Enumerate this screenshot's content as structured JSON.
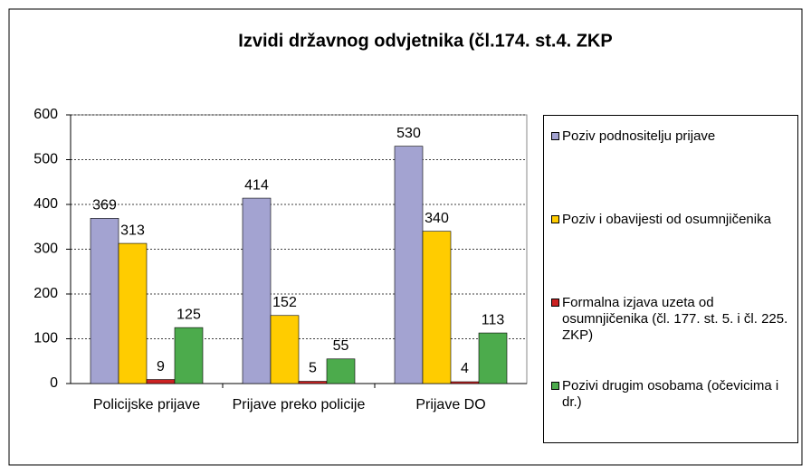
{
  "chart_data": {
    "type": "bar",
    "title": "Izvidi državnog odvjetnika (čl.174. st.4. ZKP",
    "categories": [
      "Policijske prijave",
      "Prijave preko policije",
      "Prijave DO"
    ],
    "series": [
      {
        "name": "Poziv podnositelju prijave",
        "color": "#a3a3d1",
        "values": [
          369,
          414,
          530
        ]
      },
      {
        "name": "Poziv i obavijesti od osumnjičenika",
        "color": "#ffcc00",
        "values": [
          313,
          152,
          340
        ]
      },
      {
        "name": "Formalna izjava uzeta  od osumnjičenika (čl. 177. st. 5.  i  čl. 225. ZKP)",
        "color": "#cc2222",
        "values": [
          9,
          5,
          4
        ]
      },
      {
        "name": "Pozivi drugim osobama (očevicima i dr.)",
        "color": "#4cab4c",
        "values": [
          125,
          55,
          113
        ]
      }
    ],
    "ylim": [
      0,
      600
    ],
    "yticks": [
      0,
      100,
      200,
      300,
      400,
      500,
      600
    ],
    "grid": true
  }
}
